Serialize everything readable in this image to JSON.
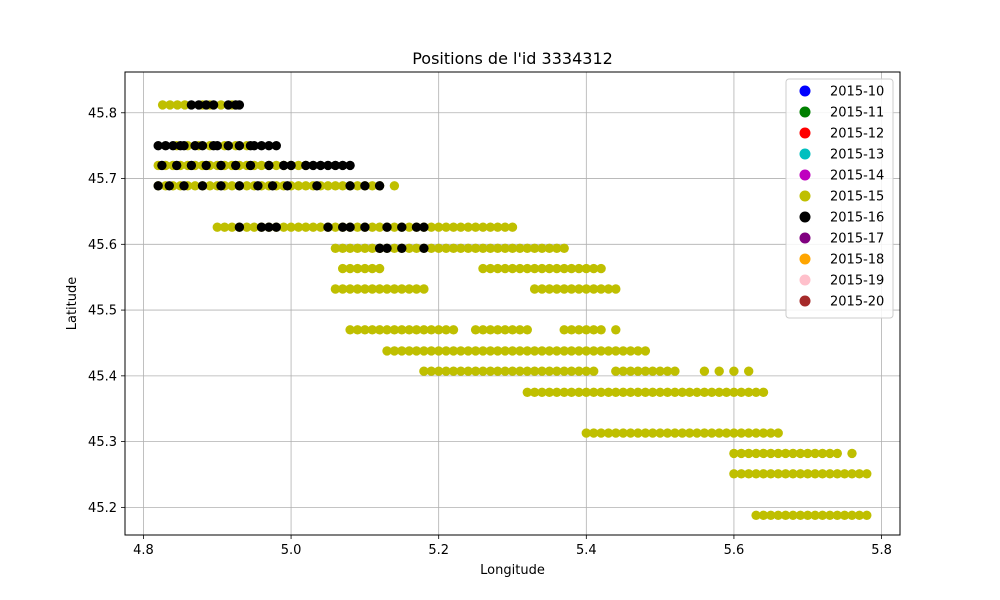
{
  "chart_data": {
    "type": "scatter",
    "title": "Positions de l'id 3334312",
    "xlabel": "Longitude",
    "ylabel": "Latitude",
    "xlim": [
      4.775,
      5.825
    ],
    "ylim": [
      45.158,
      45.862
    ],
    "xticks": [
      4.8,
      5.0,
      5.2,
      5.4,
      5.6,
      5.8
    ],
    "yticks": [
      45.2,
      45.3,
      45.4,
      45.5,
      45.6,
      45.7,
      45.8
    ],
    "grid": true,
    "legend": {
      "position": "top-right",
      "entries": [
        {
          "label": "2015-10",
          "color": "#0000ff"
        },
        {
          "label": "2015-11",
          "color": "#008000"
        },
        {
          "label": "2015-12",
          "color": "#ff0000"
        },
        {
          "label": "2015-13",
          "color": "#00bfbf"
        },
        {
          "label": "2015-14",
          "color": "#bf00bf"
        },
        {
          "label": "2015-15",
          "color": "#bfbf00"
        },
        {
          "label": "2015-16",
          "color": "#000000"
        },
        {
          "label": "2015-17",
          "color": "#800080"
        },
        {
          "label": "2015-18",
          "color": "#ffa500"
        },
        {
          "label": "2015-19",
          "color": "#ffc0cb"
        },
        {
          "label": "2015-20",
          "color": "#a52a2a"
        }
      ]
    },
    "series": [
      {
        "name": "2015-15",
        "color": "#bfbf00",
        "segments": [
          {
            "y": 45.812,
            "x": [
              4.826,
              4.836,
              4.846,
              4.856,
              4.88,
              4.89,
              4.905,
              4.92
            ]
          },
          {
            "y": 45.75,
            "x": [
              4.845,
              4.86,
              4.875,
              4.89,
              4.91,
              4.925,
              4.94
            ]
          },
          {
            "y": 45.72,
            "x": [
              4.82,
              4.83,
              4.84,
              4.85,
              4.86,
              4.87,
              4.88,
              4.89,
              4.9,
              4.91,
              4.92,
              4.93,
              4.94,
              4.95,
              4.96,
              4.97,
              4.98,
              4.99,
              5.0,
              5.01,
              5.02
            ]
          },
          {
            "y": 45.689,
            "x": [
              4.82,
              4.83,
              4.84,
              4.85,
              4.86,
              4.87,
              4.88,
              4.89,
              4.9,
              4.91,
              4.92,
              4.93,
              4.94,
              4.95,
              4.96,
              4.97,
              4.98,
              4.99,
              5.0,
              5.01,
              5.02,
              5.03,
              5.04,
              5.05,
              5.06,
              5.07,
              5.08,
              5.09,
              5.1,
              5.11,
              5.12,
              5.14
            ]
          },
          {
            "y": 45.626,
            "x": [
              4.9,
              4.91,
              4.92,
              4.93,
              4.94,
              4.95,
              4.96,
              4.97,
              4.98,
              4.99,
              5.0,
              5.01,
              5.02,
              5.03,
              5.04,
              5.05,
              5.06,
              5.07,
              5.08,
              5.09,
              5.1,
              5.11,
              5.12,
              5.13,
              5.14,
              5.15,
              5.16,
              5.17,
              5.18,
              5.19,
              5.2,
              5.21,
              5.22,
              5.23,
              5.24,
              5.25,
              5.26,
              5.27,
              5.28,
              5.29,
              5.3
            ]
          },
          {
            "y": 45.594,
            "x": [
              5.06,
              5.07,
              5.08,
              5.09,
              5.1,
              5.11,
              5.12,
              5.13,
              5.14,
              5.15,
              5.16,
              5.17,
              5.18,
              5.19,
              5.2,
              5.21,
              5.22,
              5.23,
              5.24,
              5.25,
              5.26,
              5.27,
              5.28,
              5.29,
              5.3,
              5.31,
              5.32,
              5.33,
              5.34,
              5.35,
              5.36,
              5.37
            ]
          },
          {
            "y": 45.563,
            "x": [
              5.07,
              5.08,
              5.09,
              5.1,
              5.11,
              5.12,
              5.26,
              5.27,
              5.28,
              5.29,
              5.3,
              5.31,
              5.32,
              5.33,
              5.34,
              5.35,
              5.36,
              5.37,
              5.38,
              5.39,
              5.4,
              5.41,
              5.42
            ]
          },
          {
            "y": 45.532,
            "x": [
              5.06,
              5.07,
              5.08,
              5.09,
              5.1,
              5.11,
              5.12,
              5.13,
              5.14,
              5.15,
              5.16,
              5.17,
              5.18,
              5.33,
              5.34,
              5.35,
              5.36,
              5.37,
              5.38,
              5.39,
              5.4,
              5.41,
              5.42,
              5.43,
              5.44
            ]
          },
          {
            "y": 45.47,
            "x": [
              5.08,
              5.09,
              5.1,
              5.11,
              5.12,
              5.13,
              5.14,
              5.15,
              5.16,
              5.17,
              5.18,
              5.19,
              5.2,
              5.21,
              5.22,
              5.25,
              5.26,
              5.27,
              5.28,
              5.29,
              5.3,
              5.31,
              5.32,
              5.37,
              5.38,
              5.39,
              5.4,
              5.41,
              5.42,
              5.44
            ]
          },
          {
            "y": 45.438,
            "x": [
              5.13,
              5.14,
              5.15,
              5.16,
              5.17,
              5.18,
              5.19,
              5.2,
              5.21,
              5.22,
              5.23,
              5.24,
              5.25,
              5.26,
              5.27,
              5.28,
              5.29,
              5.3,
              5.31,
              5.32,
              5.33,
              5.34,
              5.35,
              5.36,
              5.37,
              5.38,
              5.39,
              5.4,
              5.41,
              5.42,
              5.43,
              5.44,
              5.45,
              5.46,
              5.47,
              5.48
            ]
          },
          {
            "y": 45.407,
            "x": [
              5.18,
              5.19,
              5.2,
              5.21,
              5.22,
              5.23,
              5.24,
              5.25,
              5.26,
              5.27,
              5.28,
              5.29,
              5.3,
              5.31,
              5.32,
              5.33,
              5.34,
              5.35,
              5.36,
              5.37,
              5.38,
              5.39,
              5.4,
              5.41,
              5.44,
              5.45,
              5.46,
              5.47,
              5.48,
              5.49,
              5.5,
              5.51,
              5.52,
              5.56,
              5.58,
              5.6,
              5.62
            ]
          },
          {
            "y": 45.375,
            "x": [
              5.32,
              5.33,
              5.34,
              5.35,
              5.36,
              5.37,
              5.38,
              5.39,
              5.4,
              5.41,
              5.42,
              5.43,
              5.44,
              5.45,
              5.46,
              5.47,
              5.48,
              5.49,
              5.5,
              5.51,
              5.52,
              5.53,
              5.54,
              5.55,
              5.56,
              5.57,
              5.58,
              5.59,
              5.6,
              5.61,
              5.62,
              5.63,
              5.64
            ]
          },
          {
            "y": 45.313,
            "x": [
              5.4,
              5.41,
              5.42,
              5.43,
              5.44,
              5.45,
              5.46,
              5.47,
              5.48,
              5.49,
              5.5,
              5.51,
              5.52,
              5.53,
              5.54,
              5.55,
              5.56,
              5.57,
              5.58,
              5.59,
              5.6,
              5.61,
              5.62,
              5.63,
              5.64,
              5.65,
              5.66
            ]
          },
          {
            "y": 45.282,
            "x": [
              5.6,
              5.61,
              5.62,
              5.63,
              5.64,
              5.65,
              5.66,
              5.67,
              5.68,
              5.69,
              5.7,
              5.71,
              5.72,
              5.73,
              5.74,
              5.76
            ]
          },
          {
            "y": 45.251,
            "x": [
              5.6,
              5.61,
              5.62,
              5.63,
              5.64,
              5.65,
              5.66,
              5.67,
              5.68,
              5.69,
              5.7,
              5.71,
              5.72,
              5.73,
              5.74,
              5.75,
              5.76,
              5.77,
              5.78
            ]
          },
          {
            "y": 45.188,
            "x": [
              5.63,
              5.64,
              5.65,
              5.66,
              5.67,
              5.68,
              5.69,
              5.7,
              5.71,
              5.72,
              5.73,
              5.74,
              5.75,
              5.76,
              5.77,
              5.78
            ]
          }
        ]
      },
      {
        "name": "2015-16",
        "color": "#000000",
        "segments": [
          {
            "y": 45.812,
            "x": [
              4.865,
              4.875,
              4.885,
              4.895,
              4.915,
              4.925,
              4.93
            ]
          },
          {
            "y": 45.75,
            "x": [
              4.82,
              4.83,
              4.84,
              4.85,
              4.855,
              4.87,
              4.88,
              4.895,
              4.9,
              4.915,
              4.93,
              4.945,
              4.95,
              4.96,
              4.97,
              4.98
            ]
          },
          {
            "y": 45.72,
            "x": [
              4.825,
              4.845,
              4.865,
              4.885,
              4.905,
              4.925,
              4.945,
              4.97,
              4.99,
              5.0,
              5.02,
              5.03,
              5.04,
              5.05,
              5.06,
              5.07,
              5.08
            ]
          },
          {
            "y": 45.689,
            "x": [
              4.82,
              4.835,
              4.855,
              4.88,
              4.905,
              4.93,
              4.955,
              4.975,
              4.995,
              5.035,
              5.08,
              5.1,
              5.12
            ]
          },
          {
            "y": 45.626,
            "x": [
              4.93,
              4.96,
              4.97,
              4.98,
              5.05,
              5.07,
              5.08,
              5.1,
              5.13,
              5.15,
              5.17,
              5.18
            ]
          },
          {
            "y": 45.594,
            "x": [
              5.12,
              5.13,
              5.15,
              5.18
            ]
          }
        ]
      }
    ]
  }
}
